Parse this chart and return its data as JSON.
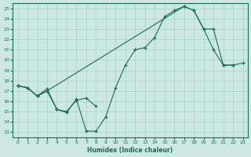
{
  "xlabel": "Humidex (Indice chaleur)",
  "bg_color": "#cce8e5",
  "grid_color": "#aacfcc",
  "line_color": "#1a6b5a",
  "ylim": [
    13,
    25
  ],
  "xlim": [
    -0.5,
    23.5
  ],
  "yticks": [
    13,
    14,
    15,
    16,
    17,
    18,
    19,
    20,
    21,
    22,
    23,
    24,
    25
  ],
  "xticks": [
    0,
    1,
    2,
    3,
    4,
    5,
    6,
    7,
    8,
    9,
    10,
    11,
    12,
    13,
    14,
    15,
    16,
    17,
    18,
    19,
    20,
    21,
    22,
    23
  ],
  "line1_x": [
    0,
    1,
    2,
    3,
    4,
    5,
    6,
    7,
    8,
    9,
    10,
    11,
    12,
    13,
    14,
    15,
    16,
    17,
    18,
    19,
    20,
    21,
    22
  ],
  "line1_y": [
    17.5,
    17.3,
    16.5,
    17.0,
    15.2,
    14.9,
    16.2,
    13.1,
    13.1,
    14.5,
    17.3,
    19.5,
    21.0,
    21.2,
    22.2,
    24.2,
    24.8,
    25.2,
    24.8,
    23.0,
    21.0,
    19.5,
    19.5
  ],
  "line2_x": [
    0,
    1,
    2,
    3,
    4,
    5,
    6,
    7,
    8
  ],
  "line2_y": [
    17.5,
    17.3,
    16.5,
    17.2,
    15.2,
    15.0,
    16.1,
    16.3,
    15.5
  ],
  "line3_x": [
    0,
    1,
    2,
    3,
    17,
    18,
    19,
    20,
    21,
    22,
    23
  ],
  "line3_y": [
    17.5,
    17.3,
    16.5,
    17.0,
    25.2,
    24.8,
    23.0,
    23.0,
    19.5,
    19.5,
    19.7
  ]
}
